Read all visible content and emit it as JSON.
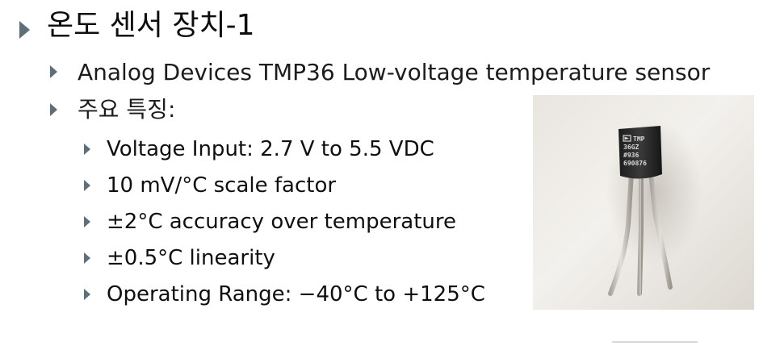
{
  "slide": {
    "title": "온도 센서 장치-1",
    "bullets": [
      {
        "text": "Analog Devices TMP36 Low-voltage temperature sensor"
      },
      {
        "text": "주요 특징:",
        "items": [
          "Voltage Input: 2.7 V to 5.5 VDC",
          "10 mV/°C scale factor",
          "±2°C accuracy over temperature",
          "±0.5°C linearity",
          "Operating Range: −40°C to +125°C"
        ]
      }
    ]
  },
  "photo": {
    "chip_marking": [
      "TMP",
      "36GZ",
      "#936",
      "690876"
    ]
  },
  "colors": {
    "bullet": "#5f6f7a",
    "text": "#111111",
    "chip_body": "#2b2b2b",
    "chip_text": "#d8d8d8",
    "leads": "#c6c2ba"
  }
}
